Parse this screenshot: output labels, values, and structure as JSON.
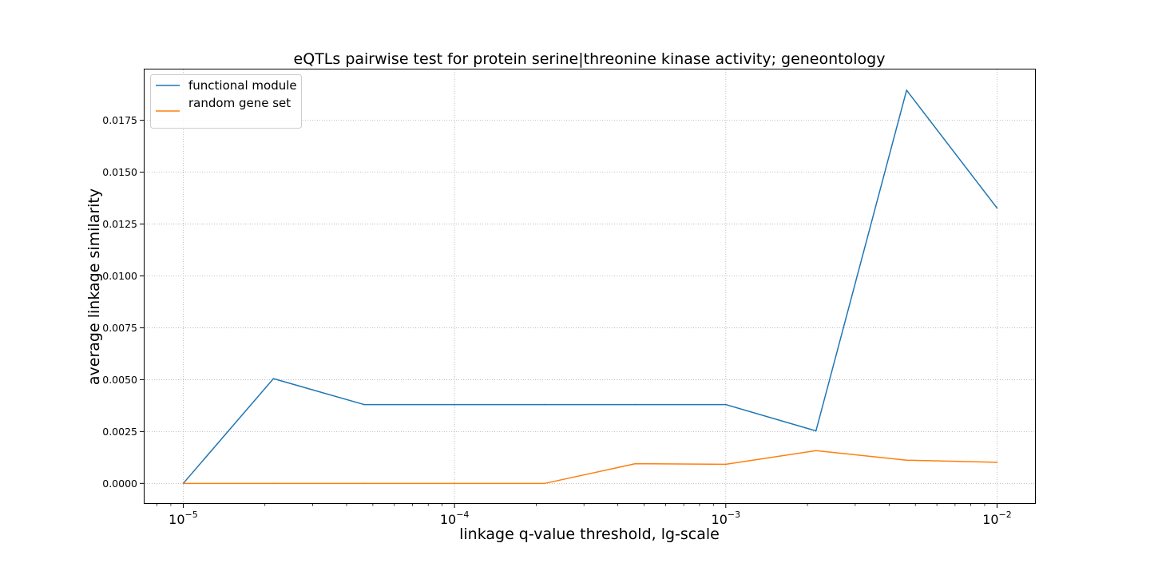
{
  "chart_data": {
    "type": "line",
    "title": "eQTLs pairwise test for protein serine|threonine kinase activity; geneontology",
    "xlabel": "linkage q-value threshold, lg-scale",
    "ylabel": "average linkage similarity",
    "x_scale": "log",
    "xlim": [
      7.2e-06,
      0.0138
    ],
    "ylim": [
      -0.00095,
      0.01995
    ],
    "grid": true,
    "legend_position": "upper-left",
    "x_ticks": [
      {
        "value": 1e-05,
        "base": "10",
        "exp": "−5"
      },
      {
        "value": 0.0001,
        "base": "10",
        "exp": "−4"
      },
      {
        "value": 0.001,
        "base": "10",
        "exp": "−3"
      },
      {
        "value": 0.01,
        "base": "10",
        "exp": "−2"
      }
    ],
    "y_ticks": [
      "0.0000",
      "0.0025",
      "0.0050",
      "0.0075",
      "0.0100",
      "0.0125",
      "0.0150",
      "0.0175"
    ],
    "x": [
      1e-05,
      2.15e-05,
      4.64e-05,
      0.0001,
      0.000215,
      0.000464,
      0.001,
      0.00215,
      0.00464,
      0.01
    ],
    "series": [
      {
        "name": "functional module",
        "color": "#1f77b4",
        "values": [
          0.0,
          0.00505,
          0.0038,
          0.0038,
          0.0038,
          0.0038,
          0.0038,
          0.00253,
          0.01895,
          0.01327
        ]
      },
      {
        "name": "random gene set",
        "color": "#ff7f0e",
        "values": [
          0.0,
          0.0,
          0.0,
          0.0,
          0.0,
          0.00095,
          0.00092,
          0.00158,
          0.00112,
          0.00102
        ]
      }
    ]
  }
}
